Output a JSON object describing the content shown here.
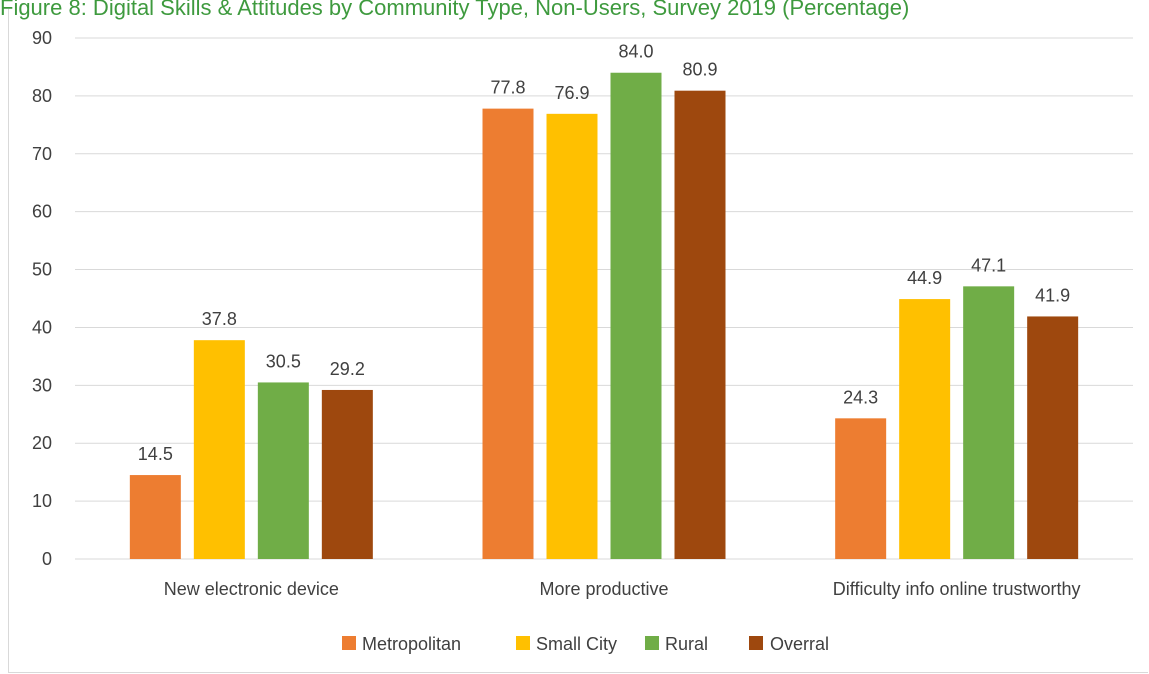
{
  "page": {
    "title": "Figure 8: Digital Skills & Attitudes by Community Type, Non-Users, Survey 2019 (Percentage)"
  },
  "chart_data": {
    "type": "bar",
    "title": "",
    "xlabel": "",
    "ylabel": "",
    "categories": [
      "New electronic device",
      "More productive",
      "Difficulty info online trustworthy"
    ],
    "series": [
      {
        "name": "Metropolitan",
        "color": "#ed7d31",
        "values": [
          14.5,
          77.8,
          24.3
        ],
        "labels": [
          "14.5",
          "77.8",
          "24.3"
        ]
      },
      {
        "name": "Small City",
        "color": "#ffc000",
        "values": [
          37.8,
          76.9,
          44.9
        ],
        "labels": [
          "37.8",
          "76.9",
          "44.9"
        ]
      },
      {
        "name": "Rural",
        "color": "#70ad47",
        "values": [
          30.5,
          84.0,
          47.1
        ],
        "labels": [
          "30.5",
          "84.0",
          "47.1"
        ]
      },
      {
        "name": "Overral",
        "color": "#9e480e",
        "values": [
          29.2,
          80.9,
          41.9
        ],
        "labels": [
          "29.2",
          "80.9",
          "41.9"
        ]
      }
    ],
    "ylim": [
      0,
      90
    ],
    "yticks": [
      "0",
      "10",
      "20",
      "30",
      "40",
      "50",
      "60",
      "70",
      "80",
      "90"
    ],
    "grid": true,
    "gridline_color": "#d9d9d9",
    "legend_position": "bottom"
  }
}
